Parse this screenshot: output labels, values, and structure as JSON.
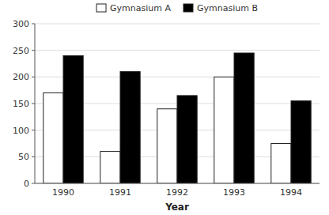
{
  "chart_data": {
    "type": "bar",
    "xlabel": "Year",
    "categories": [
      "1990",
      "1991",
      "1992",
      "1993",
      "1994"
    ],
    "series": [
      {
        "name": "Gymnasium A",
        "color": "#ffffff",
        "values": [
          170,
          60,
          140,
          200,
          75
        ]
      },
      {
        "name": "Gymnasium B",
        "color": "#000000",
        "values": [
          240,
          210,
          165,
          245,
          155
        ]
      }
    ],
    "ylim": [
      0,
      300
    ],
    "yticks": [
      0,
      50,
      100,
      150,
      200,
      250,
      300
    ],
    "grid": true,
    "legend": "top"
  }
}
